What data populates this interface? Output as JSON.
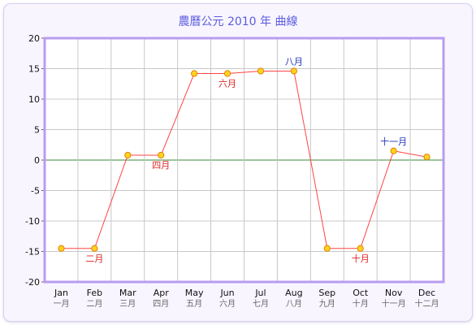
{
  "chart_data": {
    "type": "line",
    "title": "農曆公元 2010 年 曲線",
    "categories": [
      "Jan",
      "Feb",
      "Mar",
      "Apr",
      "May",
      "Jun",
      "Jul",
      "Aug",
      "Sep",
      "Oct",
      "Nov",
      "Dec"
    ],
    "categories_secondary": [
      "一月",
      "二月",
      "三月",
      "四月",
      "五月",
      "六月",
      "七月",
      "八月",
      "九月",
      "十月",
      "十一月",
      "十二月"
    ],
    "series": [
      {
        "values": [
          -14.5,
          -14.5,
          0.8,
          0.8,
          14.2,
          14.2,
          14.6,
          14.6,
          -14.5,
          -14.5,
          1.5,
          0.5
        ]
      }
    ],
    "yticks": [
      20,
      15,
      10,
      5,
      0,
      -5,
      -10,
      -15,
      -20
    ],
    "ylim": [
      -20,
      20
    ],
    "grid": true,
    "zero_line": true,
    "annotations": [
      {
        "index": 1,
        "text": "二月",
        "position": "below",
        "color": "#dd2222"
      },
      {
        "index": 3,
        "text": "四月",
        "position": "below",
        "color": "#dd2222"
      },
      {
        "index": 5,
        "text": "六月",
        "position": "below",
        "color": "#dd2222"
      },
      {
        "index": 7,
        "text": "八月",
        "position": "above",
        "color": "#2233bb"
      },
      {
        "index": 9,
        "text": "十月",
        "position": "below",
        "color": "#dd2222"
      },
      {
        "index": 10,
        "text": "十一月",
        "position": "above",
        "color": "#2233bb"
      }
    ],
    "colors": {
      "line": "#ff4444",
      "marker_fill": "#ffd21f",
      "marker_stroke": "#e08000",
      "grid": "#c8c8c8",
      "zero_line": "#3a8a3a",
      "frame": "#b99cf0"
    }
  }
}
